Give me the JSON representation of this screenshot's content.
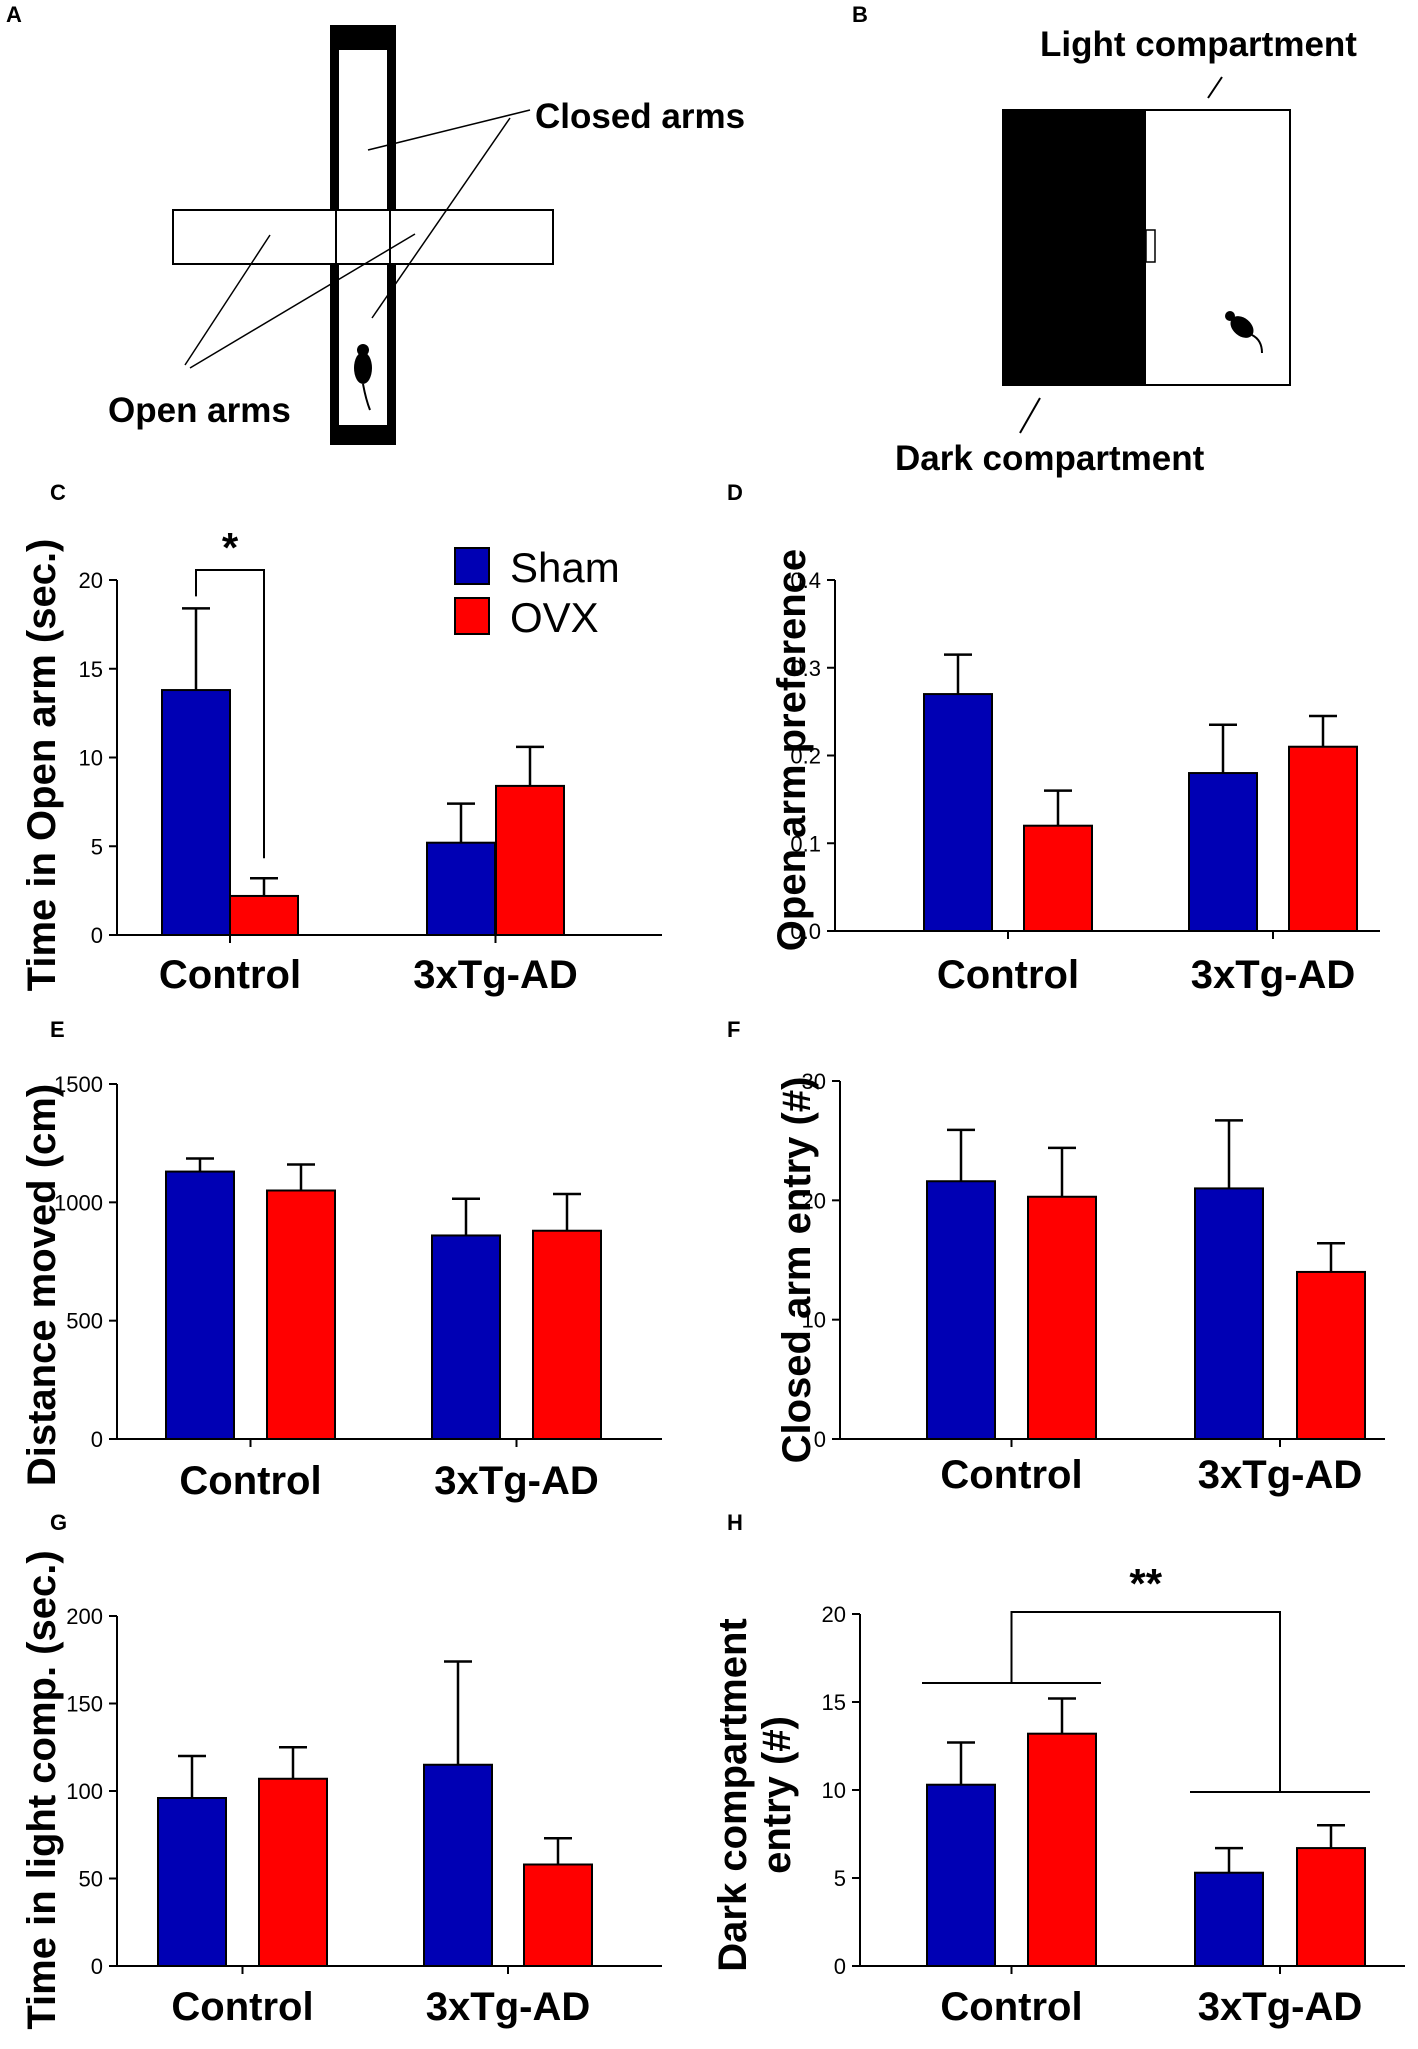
{
  "panel_labels": {
    "A": "A",
    "B": "B",
    "C": "C",
    "D": "D",
    "E": "E",
    "F": "F",
    "G": "G",
    "H": "H"
  },
  "diagram_a": {
    "closed_arms": "Closed arms",
    "open_arms": "Open arms"
  },
  "diagram_b": {
    "light": "Light compartment",
    "dark": "Dark compartment"
  },
  "legend": {
    "sham": "Sham",
    "ovx": "OVX"
  },
  "colors": {
    "sham": "#0000b4",
    "ovx": "#ff0000"
  },
  "chart_data": [
    {
      "id": "C",
      "type": "bar",
      "ylabel": "Time in Open arm (sec.)",
      "categories": [
        "Control",
        "3xTg-AD"
      ],
      "ylim": [
        0,
        20
      ],
      "ticks": [
        0,
        5,
        10,
        15,
        20
      ],
      "series": [
        {
          "name": "Sham",
          "values": [
            13.8,
            5.2
          ],
          "errors": [
            4.6,
            2.2
          ]
        },
        {
          "name": "OVX",
          "values": [
            2.2,
            8.4
          ],
          "errors": [
            1.0,
            2.2
          ]
        }
      ],
      "significance": "*"
    },
    {
      "id": "D",
      "type": "bar",
      "ylabel": "Open arm preference",
      "categories": [
        "Control",
        "3xTg-AD"
      ],
      "ylim": [
        0,
        0.4
      ],
      "ticks": [
        0.0,
        0.1,
        0.2,
        0.3,
        0.4
      ],
      "tick_labels": [
        "0.0",
        "0.1",
        "0.2",
        "0.3",
        "0.4"
      ],
      "series": [
        {
          "name": "Sham",
          "values": [
            0.27,
            0.18
          ],
          "errors": [
            0.045,
            0.055
          ]
        },
        {
          "name": "OVX",
          "values": [
            0.12,
            0.21
          ],
          "errors": [
            0.04,
            0.035
          ]
        }
      ]
    },
    {
      "id": "E",
      "type": "bar",
      "ylabel": "Distance moved (cm)",
      "categories": [
        "Control",
        "3xTg-AD"
      ],
      "ylim": [
        0,
        1500
      ],
      "ticks": [
        0,
        500,
        1000,
        1500
      ],
      "series": [
        {
          "name": "Sham",
          "values": [
            1130,
            860
          ],
          "errors": [
            55,
            155
          ]
        },
        {
          "name": "OVX",
          "values": [
            1050,
            880
          ],
          "errors": [
            110,
            155
          ]
        }
      ]
    },
    {
      "id": "F",
      "type": "bar",
      "ylabel": "Closed arm entry (#)",
      "categories": [
        "Control",
        "3xTg-AD"
      ],
      "ylim": [
        0,
        30
      ],
      "ticks": [
        0,
        10,
        20,
        30
      ],
      "series": [
        {
          "name": "Sham",
          "values": [
            21.6,
            21.0
          ],
          "errors": [
            4.3,
            5.7
          ]
        },
        {
          "name": "OVX",
          "values": [
            20.3,
            14.0
          ],
          "errors": [
            4.1,
            2.4
          ]
        }
      ]
    },
    {
      "id": "G",
      "type": "bar",
      "ylabel": "Time in light comp. (sec.)",
      "categories": [
        "Control",
        "3xTg-AD"
      ],
      "ylim": [
        0,
        200
      ],
      "ticks": [
        0,
        50,
        100,
        150,
        200
      ],
      "series": [
        {
          "name": "Sham",
          "values": [
            96,
            115
          ],
          "errors": [
            24,
            59
          ]
        },
        {
          "name": "OVX",
          "values": [
            107,
            58
          ],
          "errors": [
            18,
            15
          ]
        }
      ]
    },
    {
      "id": "H",
      "type": "bar",
      "ylabel": "Dark compartment entry (#)",
      "ylabel_lines": [
        "Dark compartment",
        "entry (#)"
      ],
      "categories": [
        "Control",
        "3xTg-AD"
      ],
      "ylim": [
        0,
        20
      ],
      "ticks": [
        0,
        5,
        10,
        15,
        20
      ],
      "series": [
        {
          "name": "Sham",
          "values": [
            10.3,
            5.3
          ],
          "errors": [
            2.4,
            1.4
          ]
        },
        {
          "name": "OVX",
          "values": [
            13.2,
            6.7
          ],
          "errors": [
            2.0,
            1.3
          ]
        }
      ],
      "significance": "**"
    }
  ]
}
